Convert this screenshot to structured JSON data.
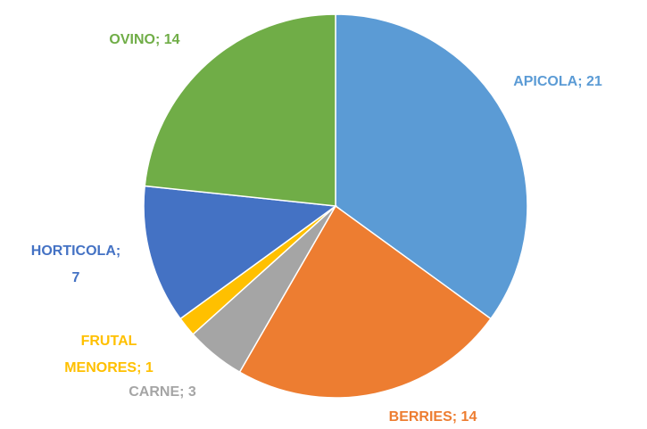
{
  "chart_data": {
    "type": "pie",
    "categories": [
      "APICOLA",
      "BERRIES",
      "CARNE",
      "FRUTAL MENORES",
      "HORTICOLA",
      "OVINO"
    ],
    "values": [
      21,
      14,
      3,
      1,
      7,
      14
    ],
    "value_labels": [
      "APICOLA; 21",
      "BERRIES; 14",
      "CARNE; 3",
      "FRUTAL MENORES; 1",
      "HORTICOLA; 7",
      "OVINO; 14"
    ],
    "colors": [
      "#5b9bd5",
      "#ed7d31",
      "#a5a5a5",
      "#ffc000",
      "#4472c4",
      "#70ad47"
    ]
  }
}
